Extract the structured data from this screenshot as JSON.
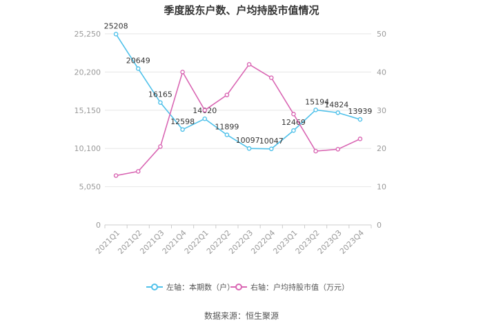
{
  "title": "季度股东户数、户均持股市值情况",
  "source": "数据来源：恒生聚源",
  "legend": {
    "left_label": "左轴：本期数（户）",
    "right_label": "右轴：户均持股市值（万元）"
  },
  "colors": {
    "left_series": "#4fc1ea",
    "right_series": "#d966b3",
    "grid": "#e6e6e6",
    "axis_text": "#999999",
    "label_text": "#333333"
  },
  "chart_data": {
    "type": "line",
    "categories": [
      "2021Q1",
      "2021Q2",
      "2021Q3",
      "2021Q4",
      "2022Q1",
      "2022Q2",
      "2022Q3",
      "2022Q4",
      "2023Q1",
      "2023Q2",
      "2023Q3",
      "2023Q4"
    ],
    "series": [
      {
        "name": "左轴：本期数（户）",
        "axis": "left",
        "values": [
          25208,
          20649,
          16165,
          12598,
          14020,
          11899,
          10097,
          10047,
          12469,
          15194,
          14824,
          13939
        ],
        "labels_shown": true
      },
      {
        "name": "右轴：户均持股市值（万元）",
        "axis": "right",
        "values": [
          12.9,
          14.0,
          20.5,
          40.0,
          30.0,
          34.0,
          42.0,
          38.5,
          29.0,
          19.3,
          19.8,
          22.5
        ],
        "labels_shown": false
      }
    ],
    "left_axis": {
      "ylim": [
        0,
        25250
      ],
      "ticks": [
        0,
        5050,
        10100,
        15150,
        20200,
        25250
      ],
      "tick_labels": [
        "0",
        "5,050",
        "10,100",
        "15,150",
        "20,200",
        "25,250"
      ]
    },
    "right_axis": {
      "ylim": [
        0,
        50
      ],
      "ticks": [
        0,
        10,
        20,
        30,
        40,
        50
      ],
      "tick_labels": [
        "0",
        "10",
        "20",
        "30",
        "40",
        "50"
      ]
    },
    "grid": true,
    "legend_position": "bottom"
  }
}
